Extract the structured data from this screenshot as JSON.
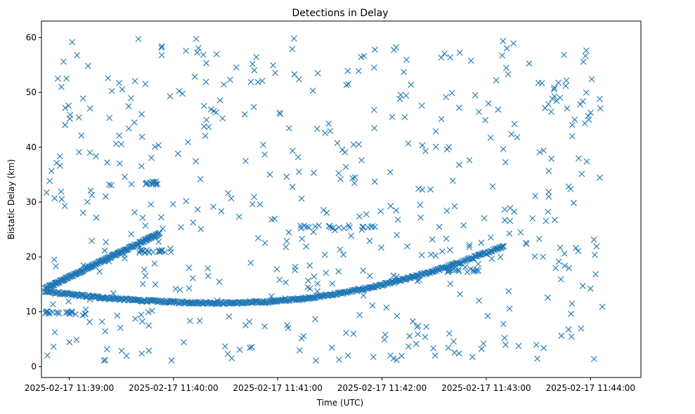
{
  "chart_data": {
    "type": "scatter",
    "title": "Detections in Delay",
    "xlabel": "Time (UTC)",
    "ylabel": "Bistatic Delay (km)",
    "grid": false,
    "legend": "none",
    "marker": "x",
    "color": "#1f77b4",
    "x_start": "2025-02-17 11:38:46",
    "xlim_seconds": [
      -16,
      329
    ],
    "ylim": [
      -2,
      63
    ],
    "x_ticks": [
      {
        "label": "2025-02-17 11:39:00",
        "seconds": 0
      },
      {
        "label": "2025-02-17 11:40:00",
        "seconds": 60
      },
      {
        "label": "2025-02-17 11:41:00",
        "seconds": 120
      },
      {
        "label": "2025-02-17 11:42:00",
        "seconds": 180
      },
      {
        "label": "2025-02-17 11:43:00",
        "seconds": 240
      },
      {
        "label": "2025-02-17 11:44:00",
        "seconds": 300
      }
    ],
    "y_ticks": [
      0,
      10,
      20,
      30,
      40,
      50,
      60
    ],
    "track_a": {
      "x_start": -14,
      "x_end": 52,
      "y_start": 14.2,
      "y_end": 24.3,
      "count": 200
    },
    "track_b": {
      "x_start": -14,
      "x_end": 250,
      "shape": "quadratic",
      "vertex_x": 90,
      "vertex_y": 11.6,
      "y_at_start": 13.7,
      "y_at_end": 22.0,
      "count": 520
    },
    "clusters": [
      {
        "x0": -14,
        "x1": 12,
        "y": 9.8,
        "count": 20
      },
      {
        "x0": 44,
        "x1": 52,
        "y": 33.5,
        "count": 14
      },
      {
        "x0": 130,
        "x1": 176,
        "y": 25.5,
        "count": 18
      },
      {
        "x0": 214,
        "x1": 236,
        "y": 17.5,
        "count": 16
      },
      {
        "x0": 40,
        "x1": 60,
        "y": 21.0,
        "count": 18
      }
    ],
    "scatter_count": 520,
    "scatter_seed": 12345,
    "noise_points": []
  }
}
